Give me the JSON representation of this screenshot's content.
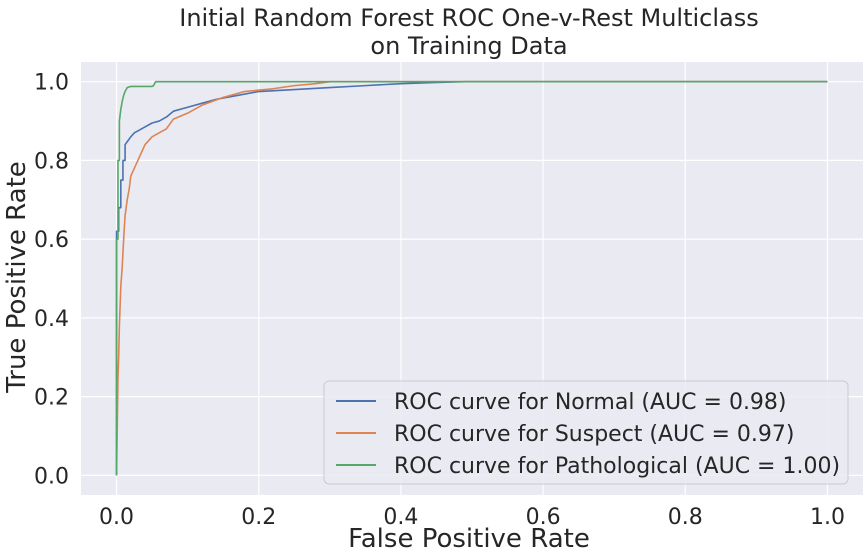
{
  "chart_data": {
    "type": "line",
    "title": [
      "Initial Random Forest ROC One-v-Rest Multiclass",
      "on Training Data"
    ],
    "xlabel": "False Positive Rate",
    "ylabel": "True Positive Rate",
    "xlim": [
      -0.05,
      1.05
    ],
    "ylim": [
      -0.05,
      1.05
    ],
    "xticks": [
      0.0,
      0.2,
      0.4,
      0.6,
      0.8,
      1.0
    ],
    "yticks": [
      0.0,
      0.2,
      0.4,
      0.6,
      0.8,
      1.0
    ],
    "xtick_labels": [
      "0.0",
      "0.2",
      "0.4",
      "0.6",
      "0.8",
      "1.0"
    ],
    "ytick_labels": [
      "0.0",
      "0.2",
      "0.4",
      "0.6",
      "0.8",
      "1.0"
    ],
    "grid": true,
    "background": "#eaeaf2",
    "legend_position": "lower-right",
    "series": [
      {
        "name": "ROC curve for Normal (AUC = 0.98)",
        "color": "#4c72b0",
        "x": [
          0.0,
          0.0,
          0.003,
          0.003,
          0.006,
          0.006,
          0.009,
          0.009,
          0.012,
          0.012,
          0.016,
          0.02,
          0.025,
          0.03,
          0.04,
          0.05,
          0.06,
          0.07,
          0.08,
          0.1,
          0.12,
          0.14,
          0.17,
          0.2,
          0.25,
          0.3,
          0.35,
          0.4,
          0.45,
          0.49,
          0.6,
          0.8,
          1.0
        ],
        "y": [
          0.0,
          0.62,
          0.62,
          0.68,
          0.68,
          0.75,
          0.75,
          0.8,
          0.8,
          0.84,
          0.85,
          0.86,
          0.87,
          0.875,
          0.885,
          0.895,
          0.9,
          0.91,
          0.925,
          0.935,
          0.945,
          0.955,
          0.965,
          0.975,
          0.98,
          0.985,
          0.99,
          0.995,
          0.998,
          1.0,
          1.0,
          1.0,
          1.0
        ]
      },
      {
        "name": "ROC curve for Suspect (AUC = 0.97)",
        "color": "#dd8452",
        "x": [
          0.0,
          0.001,
          0.002,
          0.003,
          0.004,
          0.005,
          0.006,
          0.008,
          0.01,
          0.012,
          0.015,
          0.018,
          0.02,
          0.025,
          0.03,
          0.035,
          0.04,
          0.05,
          0.06,
          0.07,
          0.08,
          0.1,
          0.12,
          0.15,
          0.18,
          0.22,
          0.25,
          0.28,
          0.3,
          0.5,
          1.0
        ],
        "y": [
          0.0,
          0.12,
          0.25,
          0.3,
          0.38,
          0.43,
          0.48,
          0.53,
          0.6,
          0.66,
          0.7,
          0.73,
          0.76,
          0.78,
          0.8,
          0.82,
          0.84,
          0.86,
          0.87,
          0.88,
          0.905,
          0.92,
          0.94,
          0.96,
          0.975,
          0.982,
          0.99,
          0.995,
          1.0,
          1.0,
          1.0
        ]
      },
      {
        "name": "ROC curve for Pathological (AUC = 1.00)",
        "color": "#55a868",
        "x": [
          0.0,
          0.0,
          0.002,
          0.002,
          0.004,
          0.004,
          0.006,
          0.008,
          0.01,
          0.012,
          0.015,
          0.02,
          0.05,
          0.052,
          0.055,
          0.06,
          0.1,
          0.3,
          0.6,
          1.0
        ],
        "y": [
          0.0,
          0.6,
          0.6,
          0.8,
          0.8,
          0.9,
          0.93,
          0.95,
          0.965,
          0.975,
          0.985,
          0.988,
          0.988,
          0.99,
          1.0,
          1.0,
          1.0,
          1.0,
          1.0,
          1.0
        ]
      }
    ]
  }
}
